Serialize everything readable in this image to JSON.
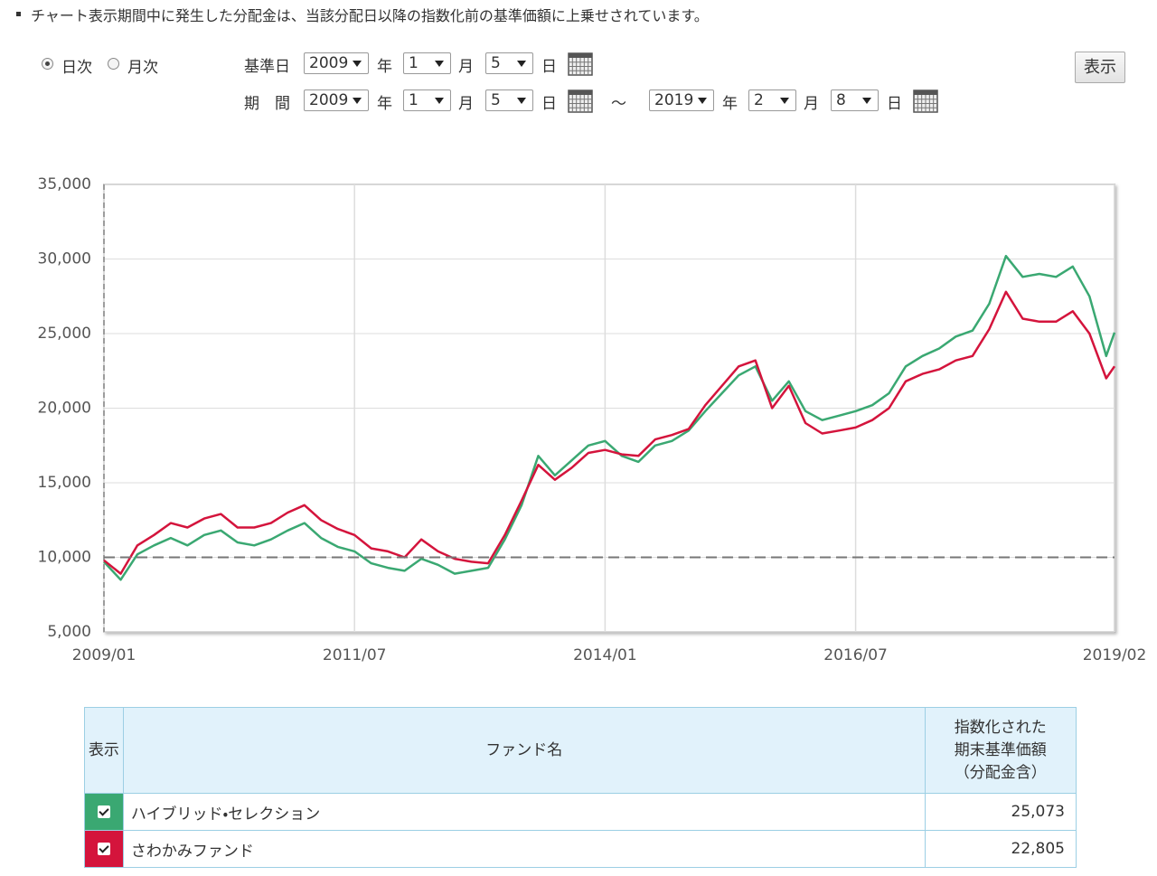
{
  "note": "チャート表示期間中に発生した分配金は、当該分配日以降の指数化前の基準価額に上乗せされています。",
  "controls": {
    "modes": [
      "日次",
      "月次"
    ],
    "base_label": "基準日",
    "base": {
      "year": "2009",
      "month": "1",
      "day": "5"
    },
    "period_label": "期　間",
    "from": {
      "year": "2009",
      "month": "1",
      "day": "5"
    },
    "separator": "～",
    "to": {
      "year": "2019",
      "month": "2",
      "day": "8"
    },
    "units": {
      "year": "年",
      "month": "月",
      "day": "日"
    },
    "button": "表示"
  },
  "chart_data": {
    "type": "line",
    "x": [
      "2009/01",
      "2009/03",
      "2009/05",
      "2009/07",
      "2009/09",
      "2009/11",
      "2010/01",
      "2010/03",
      "2010/05",
      "2010/07",
      "2010/09",
      "2010/11",
      "2011/01",
      "2011/03",
      "2011/05",
      "2011/07",
      "2011/09",
      "2011/11",
      "2012/01",
      "2012/03",
      "2012/05",
      "2012/07",
      "2012/09",
      "2012/11",
      "2013/01",
      "2013/03",
      "2013/05",
      "2013/07",
      "2013/09",
      "2013/11",
      "2014/01",
      "2014/03",
      "2014/05",
      "2014/07",
      "2014/09",
      "2014/11",
      "2015/01",
      "2015/03",
      "2015/05",
      "2015/07",
      "2015/09",
      "2015/11",
      "2016/01",
      "2016/03",
      "2016/05",
      "2016/07",
      "2016/09",
      "2016/11",
      "2017/01",
      "2017/03",
      "2017/05",
      "2017/07",
      "2017/09",
      "2017/11",
      "2018/01",
      "2018/03",
      "2018/05",
      "2018/07",
      "2018/09",
      "2018/11",
      "2019/01",
      "2019/02"
    ],
    "series": [
      {
        "name": "ハイブリッド・セレクション",
        "color": "#3aa872",
        "values": [
          9700,
          8500,
          10200,
          10800,
          11300,
          10800,
          11500,
          11800,
          11000,
          10800,
          11200,
          11800,
          12300,
          11300,
          10700,
          10400,
          9600,
          9300,
          9100,
          9900,
          9500,
          8900,
          9100,
          9300,
          11200,
          13500,
          16800,
          15500,
          16500,
          17500,
          17800,
          16800,
          16400,
          17500,
          17800,
          18500,
          19800,
          21000,
          22200,
          22800,
          20500,
          21800,
          19800,
          19200,
          19500,
          19800,
          20200,
          21000,
          22800,
          23500,
          24000,
          24800,
          25200,
          27000,
          30200,
          28800,
          29000,
          28800,
          29500,
          27500,
          23500,
          25073
        ]
      },
      {
        "name": "さわかみファンド",
        "color": "#d4143c",
        "values": [
          9800,
          8900,
          10800,
          11500,
          12300,
          12000,
          12600,
          12900,
          12000,
          12000,
          12300,
          13000,
          13500,
          12500,
          11900,
          11500,
          10600,
          10400,
          10000,
          11200,
          10400,
          9900,
          9700,
          9600,
          11500,
          13800,
          16200,
          15200,
          16000,
          17000,
          17200,
          16900,
          16800,
          17900,
          18200,
          18600,
          20200,
          21500,
          22800,
          23200,
          20000,
          21500,
          19000,
          18300,
          18500,
          18700,
          19200,
          20000,
          21800,
          22300,
          22600,
          23200,
          23500,
          25300,
          27800,
          26000,
          25800,
          25800,
          26500,
          25000,
          22000,
          22805
        ]
      }
    ],
    "xlim": [
      "2009/01",
      "2019/02"
    ],
    "xticks": [
      "2009/01",
      "2011/07",
      "2014/01",
      "2016/07",
      "2019/02"
    ],
    "ylim": [
      5000,
      35000
    ],
    "yticks": [
      {
        "value": 5000,
        "label": "5,000"
      },
      {
        "value": 10000,
        "label": "10,000"
      },
      {
        "value": 15000,
        "label": "15,000"
      },
      {
        "value": 20000,
        "label": "20,000"
      },
      {
        "value": 25000,
        "label": "25,000"
      },
      {
        "value": 30000,
        "label": "30,000"
      },
      {
        "value": 35000,
        "label": "35,000"
      }
    ],
    "reference_line": 10000,
    "grid": true
  },
  "table": {
    "headers": [
      "表示",
      "ファンド名",
      "指数化された\n期末基準価額\n（分配金含）"
    ],
    "rows": [
      {
        "value": "25,073"
      },
      {
        "value": "22,805"
      }
    ]
  }
}
